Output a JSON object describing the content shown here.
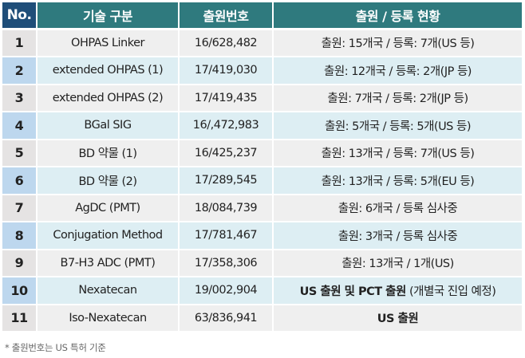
{
  "table": {
    "headers": {
      "no": "No.",
      "tech": "기술 구분",
      "app_no": "출원번호",
      "status": "출원 / 등록 현황"
    },
    "rows": [
      {
        "no": "1",
        "tech": "OHPAS Linker",
        "app_no": "16/628,482",
        "status": "출원: 15개국 / 등록: 7개(US 등)"
      },
      {
        "no": "2",
        "tech": "extended OHPAS (1)",
        "app_no": "17/419,030",
        "status": "출원: 12개국 / 등록: 2개(JP 등)"
      },
      {
        "no": "3",
        "tech": "extended OHPAS (2)",
        "app_no": "17/419,435",
        "status": "출원: 7개국 / 등록: 2개(JP 등)"
      },
      {
        "no": "4",
        "tech": "BGal SIG",
        "app_no": "16/,472,983",
        "status": "출원: 5개국 / 등록: 5개(US 등)"
      },
      {
        "no": "5",
        "tech": "BD 약물 (1)",
        "app_no": "16/425,237",
        "status": "출원: 13개국 / 등록: 7개(US 등)"
      },
      {
        "no": "6",
        "tech": "BD 약물 (2)",
        "app_no": "17/289,545",
        "status": "출원: 13개국 / 등록: 5개(EU 등)"
      },
      {
        "no": "7",
        "tech": "AgDC (PMT)",
        "app_no": "18/084,739",
        "status": "출원: 6개국 / 등록 심사중"
      },
      {
        "no": "8",
        "tech": "Conjugation Method",
        "app_no": "17/781,467",
        "status": "출원: 3개국 / 등록 심사중"
      },
      {
        "no": "9",
        "tech": "B7-H3 ADC (PMT)",
        "app_no": "17/358,306",
        "status": "출원: 13개국 / 1개(US)"
      },
      {
        "no": "10",
        "tech": "Nexatecan",
        "app_no": "19/002,904",
        "status_bold": "US 출원 및 PCT 출원",
        "status_light": " (개별국 진입 예정)"
      },
      {
        "no": "11",
        "tech": "Iso-Nexatecan",
        "app_no": "63/836,941",
        "status_bold": "US 출원"
      }
    ]
  },
  "footnote": "* 출원번호는 US 특허 기준",
  "colors": {
    "header_no": "#1f4e79",
    "header": "#2f7a7e",
    "row_odd": "#efefef",
    "row_even": "#ddeef3",
    "no_odd": "#e5e3e3",
    "no_even": "#bdd7ee"
  }
}
